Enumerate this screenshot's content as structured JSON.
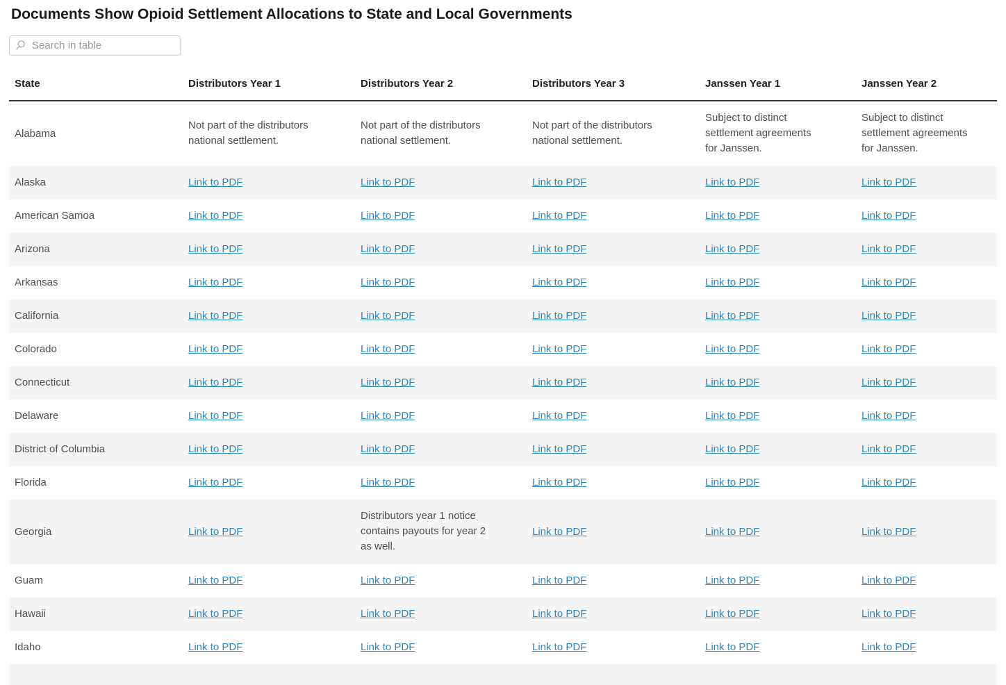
{
  "page": {
    "title": "Documents Show Opioid Settlement Allocations to State and Local Governments"
  },
  "search": {
    "placeholder": "Search in table",
    "value": "",
    "icon": "search-icon"
  },
  "table": {
    "columns": [
      "State",
      "Distributors Year 1",
      "Distributors Year 2",
      "Distributors Year 3",
      "Janssen Year 1",
      "Janssen Year 2"
    ],
    "link_label": "Link to PDF",
    "notes": {
      "distributors_na": "Not part of the distributors national settlement.",
      "janssen_distinct": "Subject to distinct settlement agreements for Janssen.",
      "georgia_combined": "Distributors year 1 notice contains payouts for year 2 as well."
    },
    "rows": [
      {
        "state": "Alabama",
        "cells": [
          {
            "note": "distributors_na"
          },
          {
            "note": "distributors_na"
          },
          {
            "note": "distributors_na"
          },
          {
            "note": "janssen_distinct"
          },
          {
            "note": "janssen_distinct"
          }
        ]
      },
      {
        "state": "Alaska",
        "cells": [
          "link",
          "link",
          "link",
          "link",
          "link"
        ]
      },
      {
        "state": "American Samoa",
        "cells": [
          "link",
          "link",
          "link",
          "link",
          "link"
        ]
      },
      {
        "state": "Arizona",
        "cells": [
          "link",
          "link",
          "link",
          "link",
          "link"
        ]
      },
      {
        "state": "Arkansas",
        "cells": [
          "link",
          "link",
          "link",
          "link",
          "link"
        ]
      },
      {
        "state": "California",
        "cells": [
          "link",
          "link",
          "link",
          "link",
          "link"
        ]
      },
      {
        "state": "Colorado",
        "cells": [
          "link",
          "link",
          "link",
          "link",
          "link"
        ]
      },
      {
        "state": "Connecticut",
        "cells": [
          "link",
          "link",
          "link",
          "link",
          "link"
        ]
      },
      {
        "state": "Delaware",
        "cells": [
          "link",
          "link",
          "link",
          "link",
          "link"
        ]
      },
      {
        "state": "District of Columbia",
        "cells": [
          "link",
          "link",
          "link",
          "link",
          "link"
        ]
      },
      {
        "state": "Florida",
        "cells": [
          "link",
          "link",
          "link",
          "link",
          "link"
        ]
      },
      {
        "state": "Georgia",
        "cells": [
          "link",
          {
            "note": "georgia_combined"
          },
          "link",
          "link",
          "link"
        ]
      },
      {
        "state": "Guam",
        "cells": [
          "link",
          "link",
          "link",
          "link",
          "link"
        ]
      },
      {
        "state": "Hawaii",
        "cells": [
          "link",
          "link",
          "link",
          "link",
          "link"
        ]
      },
      {
        "state": "Idaho",
        "cells": [
          "link",
          "link",
          "link",
          "link",
          "link"
        ]
      }
    ]
  },
  "colors": {
    "link": "#2f86c3",
    "stripe": "#f5f5f5",
    "text": "#4e4e4e",
    "heading": "#1a1a1a",
    "header_text": "#222222",
    "header_rule": "#333333",
    "search_border": "#cccccc",
    "placeholder": "#999999",
    "icon": "#aaaaaa"
  }
}
